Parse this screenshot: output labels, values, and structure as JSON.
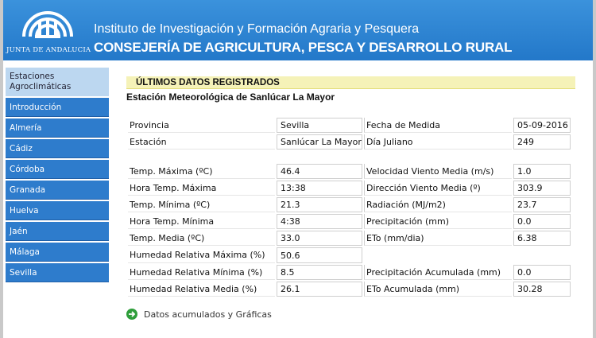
{
  "header": {
    "logo_text": "JUNTA DE ANDALUCIA",
    "line1": "Instituto de Investigación y Formación Agraria y Pesquera",
    "line2": "CONSEJERÍA DE AGRICULTURA, PESCA Y DESARROLLO RURAL"
  },
  "sidebar": {
    "items": [
      {
        "label": "Estaciones Agroclimáticas",
        "active": true
      },
      {
        "label": "Introducción"
      },
      {
        "label": "Almería"
      },
      {
        "label": "Cádiz"
      },
      {
        "label": "Córdoba"
      },
      {
        "label": "Granada"
      },
      {
        "label": "Huelva"
      },
      {
        "label": "Jaén"
      },
      {
        "label": "Málaga"
      },
      {
        "label": "Sevilla"
      }
    ]
  },
  "main": {
    "section_title": "ÚLTIMOS DATOS REGISTRADOS",
    "station_title": "Estación Meteorológica de Sanlúcar La Mayor",
    "info": {
      "provincia_label": "Provincia",
      "provincia_value": "Sevilla",
      "fecha_label": "Fecha de Medida",
      "fecha_value": "05-09-2016",
      "estacion_label": "Estación",
      "estacion_value": "Sanlúcar La Mayor",
      "dia_label": "Día Juliano",
      "dia_value": "249"
    },
    "data_rows": [
      {
        "l1": "Temp. Máxima (ºC)",
        "v1": "46.4",
        "l2": "Velocidad Viento Media (m/s)",
        "v2": "1.0"
      },
      {
        "l1": "Hora Temp. Máxima",
        "v1": "13:38",
        "l2": "Dirección Viento Media (º)",
        "v2": "303.9"
      },
      {
        "l1": "Temp. Mínima (ºC)",
        "v1": "21.3",
        "l2": "Radiación (MJ/m2)",
        "v2": "23.7"
      },
      {
        "l1": "Hora Temp. Mínima",
        "v1": "4:38",
        "l2": "Precipitación (mm)",
        "v2": "0.0"
      },
      {
        "l1": "Temp. Media (ºC)",
        "v1": "33.0",
        "l2": "ETo (mm/dia)",
        "v2": "6.38"
      },
      {
        "l1": "Humedad Relativa Máxima (%)",
        "v1": "50.6",
        "l2": "",
        "v2": ""
      },
      {
        "l1": "Humedad Relativa Mínima (%)",
        "v1": "8.5",
        "l2": "Precipitación Acumulada (mm)",
        "v2": "0.0"
      },
      {
        "l1": "Humedad Relativa Media (%)",
        "v1": "26.1",
        "l2": "ETo Acumulada (mm)",
        "v2": "30.28"
      }
    ],
    "link_label": "Datos acumulados y Gráficas"
  },
  "icons": {
    "go": "arrow-right-circle-icon",
    "logo": "junta-andalucia-logo"
  },
  "colors": {
    "header": "#2d86d4",
    "nav": "#2e7ccc",
    "nav_active": "#bcd7f0",
    "section_bar": "#f5f2b8",
    "go_icon": "#2e9e3a"
  }
}
